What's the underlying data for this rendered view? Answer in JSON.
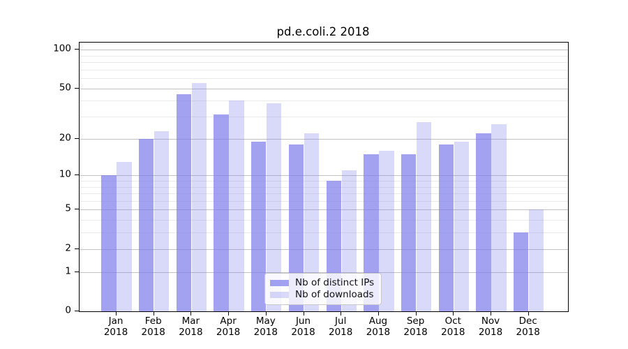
{
  "chart_data": {
    "type": "bar",
    "title": "pd.e.coli.2 2018",
    "categories": [
      "Jan",
      "Feb",
      "Mar",
      "Apr",
      "May",
      "Jun",
      "Jul",
      "Aug",
      "Sep",
      "Oct",
      "Nov",
      "Dec"
    ],
    "year_label": "2018",
    "series": [
      {
        "name": "Nb of distinct IPs",
        "color": "rgba(123,123,234,0.70)",
        "values": [
          10,
          20,
          45,
          31,
          19,
          18,
          9,
          15,
          15,
          18,
          22,
          3
        ]
      },
      {
        "name": "Nb of downloads",
        "color": "rgba(123,123,234,0.29)",
        "values": [
          13,
          23,
          55,
          40,
          38,
          22,
          11,
          16,
          27,
          19,
          26,
          5
        ]
      }
    ],
    "y_scale": "log1p",
    "y_axis_ticks": [
      0,
      1,
      2,
      5,
      10,
      20,
      50,
      100
    ],
    "y_minor_gridlines": [
      3,
      4,
      6,
      7,
      8,
      9,
      30,
      40,
      60,
      70,
      80,
      90
    ],
    "ylim": [
      0,
      113
    ],
    "xlabel": "",
    "ylabel": "",
    "grid": "on",
    "legend_position": "lower center",
    "colors": {
      "bar_apparent_dark": "#a3a3ee",
      "bar_apparent_light": "#d9d9f9",
      "major_grid": "#c2c2c2",
      "minor_grid": "#eaeaea",
      "axis": "#000000",
      "background": "#ffffff"
    }
  }
}
